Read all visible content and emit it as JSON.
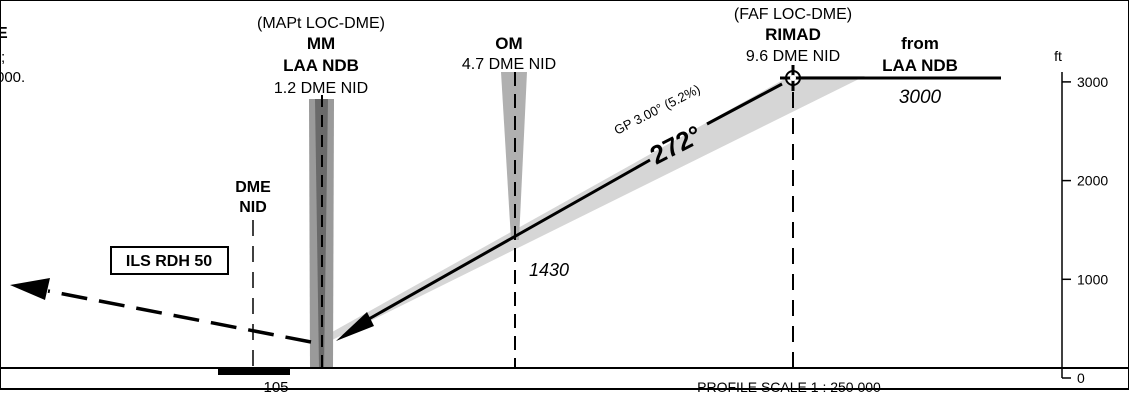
{
  "left_notes": {
    "line1": "E",
    "line2": ");",
    "line3": "000."
  },
  "mapt": {
    "header": "(MAPt LOC-DME)",
    "name": "MM",
    "facility": "LAA NDB",
    "dme": "1.2 DME NID"
  },
  "om": {
    "name": "OM",
    "dme": "4.7 DME NID",
    "altitude": "1430"
  },
  "faf": {
    "header": "(FAF LOC-DME)",
    "name": "RIMAD",
    "dme": "9.6 DME NID"
  },
  "from": {
    "label": "from",
    "facility": "LAA NDB",
    "altitude": "3000"
  },
  "dme_station": {
    "line1": "DME",
    "line2": "NID"
  },
  "glidepath": {
    "label": "GP 3.00° (5.2%)",
    "course": "272°"
  },
  "ils_rdh": "ILS RDH 50",
  "bottom_left_value": "105",
  "profile_scale": "PROFILE SCALE 1 : 250 000",
  "altitude_scale": {
    "unit": "ft",
    "ticks": [
      "3000",
      "2000",
      "1000",
      "0"
    ]
  }
}
